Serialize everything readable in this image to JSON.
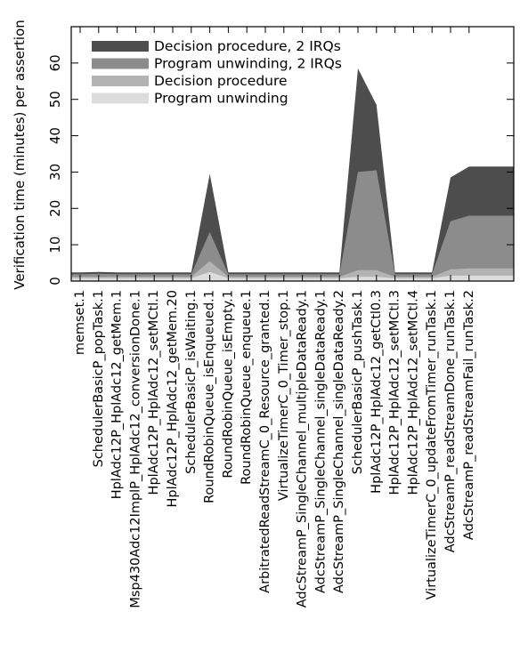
{
  "chart_data": {
    "type": "area",
    "title": "",
    "xlabel": "",
    "ylabel": "Verification time (minutes) per assertion",
    "ylim": [
      0,
      70
    ],
    "yticks": [
      0,
      10,
      20,
      30,
      40,
      50,
      60
    ],
    "grid": false,
    "stacked": false,
    "legend_position": "top-left",
    "categories": [
      "memset.1",
      "SchedulerBasicP_popTask.1",
      "HplAdc12P_HplAdc12_getMem.1",
      "Msp430Adc12ImplP_HplAdc12_conversionDone.1",
      "HplAdc12P_HplAdc12_setMCtl.1",
      "HplAdc12P_HplAdc12_getMem.20",
      "SchedulerBasicP_isWaiting.1",
      "RoundRobinQueue_isEnqueued.1",
      "RoundRobinQueue_isEmpty.1",
      "RoundRobinQueue_enqueue.1",
      "ArbitratedReadStreamC_0_Resource_granted.1",
      "VirtualizeTimerC_0_Timer_stop.1",
      "AdcStreamP_SingleChannel_multipleDataReady.1",
      "AdcStreamP_SingleChannel_singleDataReady.1",
      "AdcStreamP_SingleChannel_singleDataReady.2",
      "SchedulerBasicP_pushTask.1",
      "HplAdc12P_HplAdc12_getCtl0.3",
      "HplAdc12P_HplAdc12_setMCtl.3",
      "HplAdc12P_HplAdc12_setMCtl.4",
      "VirtualizeTimerC_0_updateFromTimer_runTask.1",
      "AdcStreamP_readStreamDone_runTask.1",
      "AdcStreamP_readStreamFail_runTask.2"
    ],
    "series": [
      {
        "name": "Decision procedure, 2 IRQs",
        "color": "#4d4d4d",
        "values": [
          2.4,
          2.5,
          2.4,
          2.4,
          2.4,
          2.4,
          2.4,
          29.5,
          2.4,
          2.4,
          2.4,
          2.4,
          2.4,
          2.4,
          2.4,
          58.5,
          48.5,
          2.4,
          2.4,
          2.4,
          28.5,
          31.5
        ]
      },
      {
        "name": "Program unwinding, 2 IRQs",
        "color": "#8c8c8c",
        "values": [
          1.9,
          2.0,
          1.9,
          1.9,
          1.9,
          1.9,
          1.9,
          13.5,
          1.9,
          1.9,
          1.9,
          1.9,
          1.9,
          1.9,
          1.9,
          30.0,
          30.5,
          1.9,
          1.9,
          1.9,
          16.5,
          18.0
        ]
      },
      {
        "name": "Decision procedure",
        "color": "#b3b3b3",
        "values": [
          1.2,
          1.2,
          1.2,
          1.2,
          1.2,
          1.2,
          1.2,
          5.5,
          1.2,
          1.2,
          1.2,
          1.2,
          1.2,
          1.2,
          1.2,
          3.0,
          3.0,
          1.2,
          1.2,
          1.2,
          3.2,
          3.5
        ]
      },
      {
        "name": "Program unwinding",
        "color": "#dcdcdc",
        "values": [
          0.8,
          0.8,
          0.8,
          0.8,
          0.8,
          0.8,
          0.8,
          2.5,
          0.8,
          0.8,
          0.8,
          0.8,
          0.8,
          0.8,
          0.8,
          1.2,
          1.2,
          0.8,
          0.8,
          0.8,
          1.5,
          1.5
        ]
      }
    ]
  }
}
